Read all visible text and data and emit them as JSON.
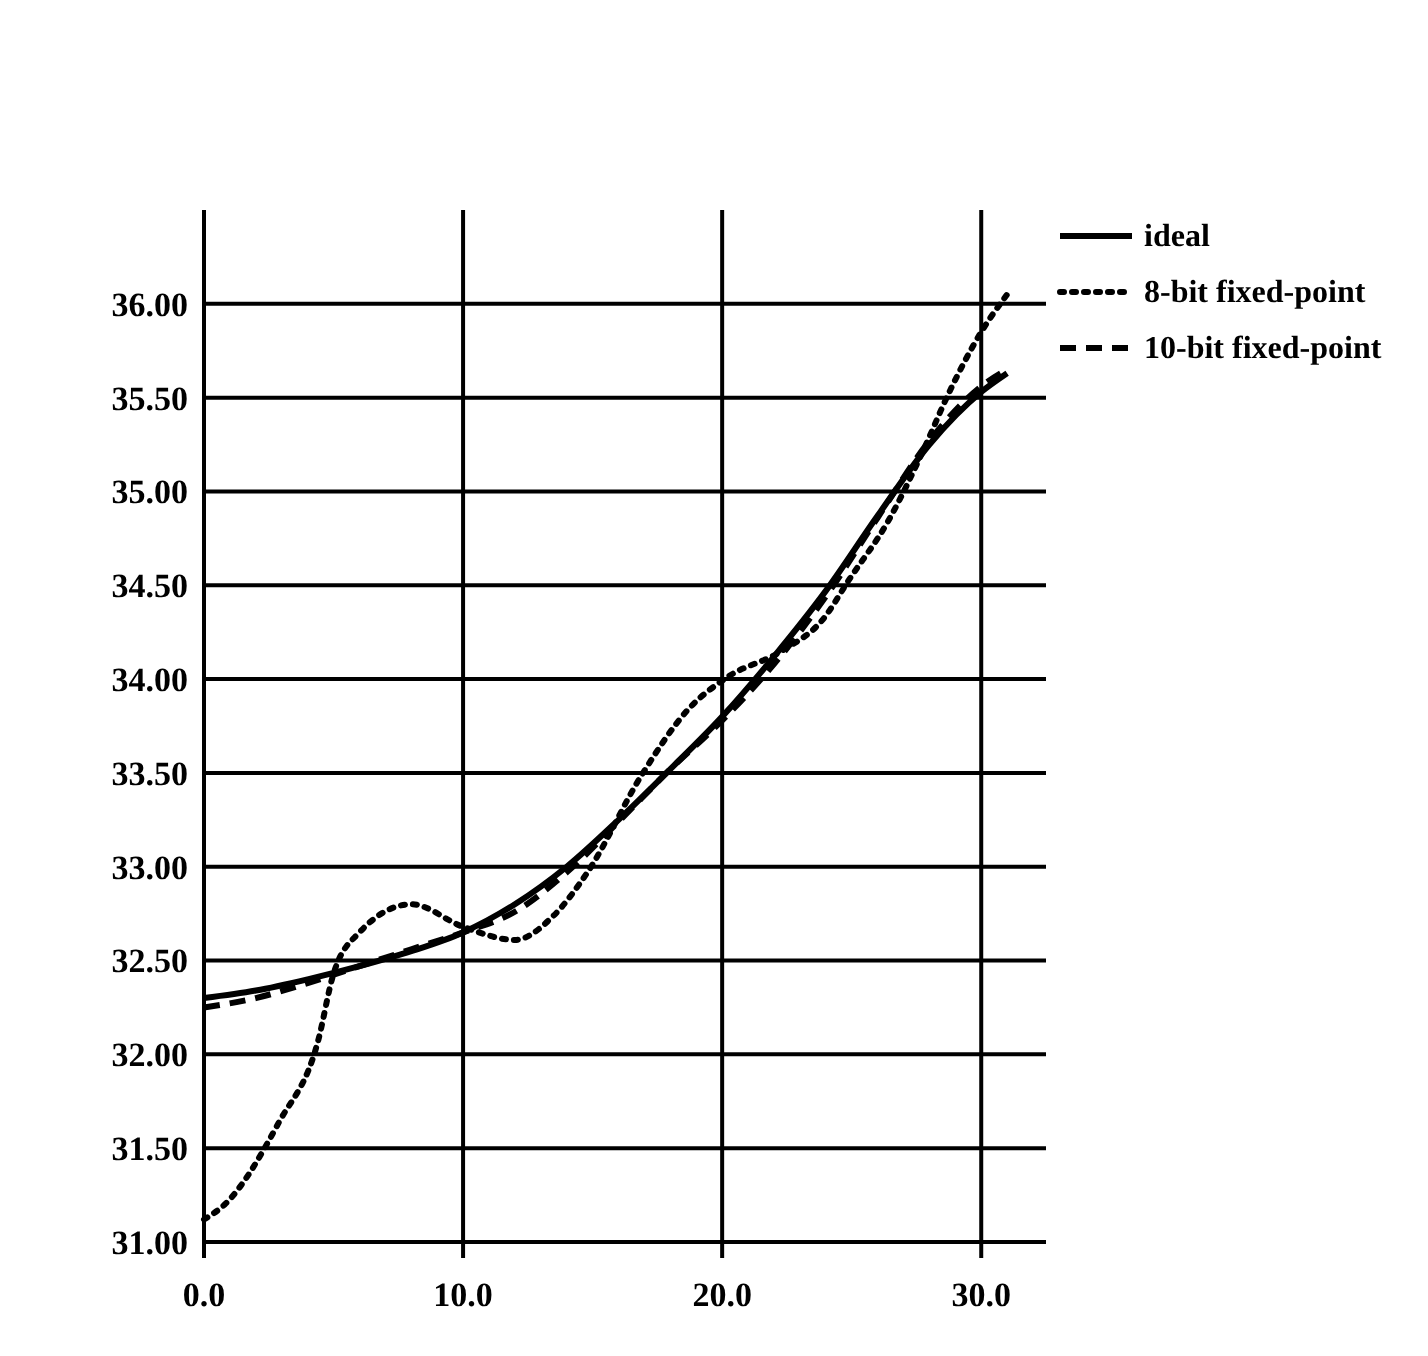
{
  "chart_data": {
    "type": "line",
    "grid": true,
    "legend": "top right",
    "xlim": [
      0,
      32.5
    ],
    "ylim": [
      31,
      36.5
    ],
    "xticks": [
      {
        "value": 0,
        "label": "0.0"
      },
      {
        "value": 10,
        "label": "10.0"
      },
      {
        "value": 20,
        "label": "20.0"
      },
      {
        "value": 30,
        "label": "30.0"
      }
    ],
    "yticks": [
      {
        "value": 31,
        "label": "31.00"
      },
      {
        "value": 31.5,
        "label": "31.50"
      },
      {
        "value": 32,
        "label": "32.00"
      },
      {
        "value": 32.5,
        "label": "32.50"
      },
      {
        "value": 33,
        "label": "33.00"
      },
      {
        "value": 33.5,
        "label": "33.50"
      },
      {
        "value": 34,
        "label": "34.00"
      },
      {
        "value": 34.5,
        "label": "34.50"
      },
      {
        "value": 35,
        "label": "35.00"
      },
      {
        "value": 35.5,
        "label": "35.50"
      },
      {
        "value": 36,
        "label": "36.00"
      }
    ],
    "series": [
      {
        "name": "ideal",
        "color": "#000000",
        "line_style": "solid",
        "x": [
          0,
          2,
          4,
          6,
          8,
          10,
          12,
          14,
          16,
          18,
          20,
          22,
          24,
          26,
          28,
          30,
          31
        ],
        "values": [
          32.3,
          32.34,
          32.4,
          32.47,
          32.55,
          32.65,
          32.8,
          33.0,
          33.25,
          33.52,
          33.8,
          34.12,
          34.47,
          34.87,
          35.25,
          35.53,
          35.63
        ]
      },
      {
        "name": "8-bit fixed-point",
        "color": "#000000",
        "line_style": "dotted",
        "x": [
          0,
          0.8,
          2.9,
          4.4,
          5,
          6,
          8,
          10,
          12,
          13.5,
          14.8,
          16.9,
          18.7,
          20.2,
          22.3,
          23.9,
          24.9,
          26.4,
          27.8,
          28.7,
          30,
          31
        ],
        "values": [
          31.12,
          31.2,
          31.64,
          32.07,
          32.43,
          32.65,
          32.8,
          32.68,
          32.61,
          32.74,
          32.97,
          33.49,
          33.84,
          34.01,
          34.15,
          34.32,
          34.53,
          34.84,
          35.23,
          35.51,
          35.85,
          36.05
        ]
      },
      {
        "name": "10-bit fixed-point",
        "color": "#000000",
        "line_style": "dashed",
        "x": [
          0,
          2,
          4,
          6,
          8,
          10,
          12,
          14,
          16,
          18,
          20,
          22,
          24,
          26,
          28,
          30,
          31
        ],
        "values": [
          32.25,
          32.3,
          32.38,
          32.47,
          32.56,
          32.65,
          32.76,
          32.97,
          33.24,
          33.52,
          33.78,
          34.08,
          34.44,
          34.86,
          35.27,
          35.56,
          35.65
        ]
      }
    ]
  }
}
